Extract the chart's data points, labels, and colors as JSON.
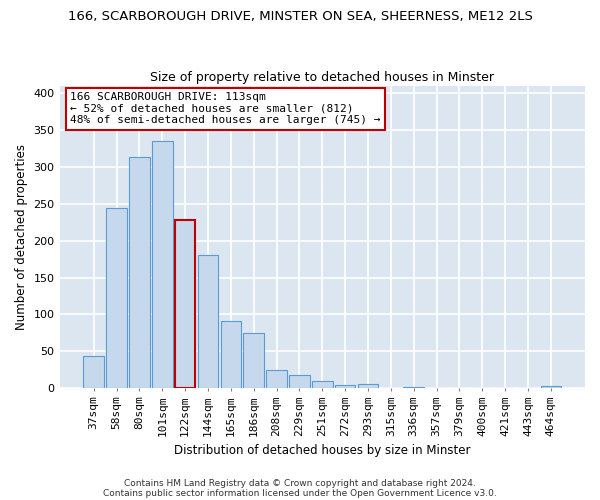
{
  "title": "166, SCARBOROUGH DRIVE, MINSTER ON SEA, SHEERNESS, ME12 2LS",
  "subtitle": "Size of property relative to detached houses in Minster",
  "xlabel": "Distribution of detached houses by size in Minster",
  "ylabel": "Number of detached properties",
  "bar_labels": [
    "37sqm",
    "58sqm",
    "80sqm",
    "101sqm",
    "122sqm",
    "144sqm",
    "165sqm",
    "186sqm",
    "208sqm",
    "229sqm",
    "251sqm",
    "272sqm",
    "293sqm",
    "315sqm",
    "336sqm",
    "357sqm",
    "379sqm",
    "400sqm",
    "421sqm",
    "443sqm",
    "464sqm"
  ],
  "bar_values": [
    43,
    245,
    313,
    335,
    228,
    180,
    91,
    75,
    25,
    18,
    10,
    4,
    6,
    0,
    1,
    0,
    0,
    0,
    0,
    0,
    3
  ],
  "bar_color": "#c6d9ec",
  "bar_edge_color": "#5b9bd5",
  "highlight_bar_index": 4,
  "highlight_bar_edge_color": "#c00000",
  "annotation_text": "166 SCARBOROUGH DRIVE: 113sqm\n← 52% of detached houses are smaller (812)\n48% of semi-detached houses are larger (745) →",
  "annotation_box_color": "white",
  "annotation_box_edge_color": "#c00000",
  "ylim": [
    0,
    410
  ],
  "yticks": [
    0,
    50,
    100,
    150,
    200,
    250,
    300,
    350,
    400
  ],
  "footnote1": "Contains HM Land Registry data © Crown copyright and database right 2024.",
  "footnote2": "Contains public sector information licensed under the Open Government Licence v3.0.",
  "plot_bg_color": "#dce6f1",
  "fig_bg_color": "#ffffff",
  "grid_color": "#ffffff",
  "title_fontsize": 9.5,
  "subtitle_fontsize": 9,
  "axis_label_fontsize": 8.5,
  "tick_fontsize": 8,
  "annotation_fontsize": 8
}
